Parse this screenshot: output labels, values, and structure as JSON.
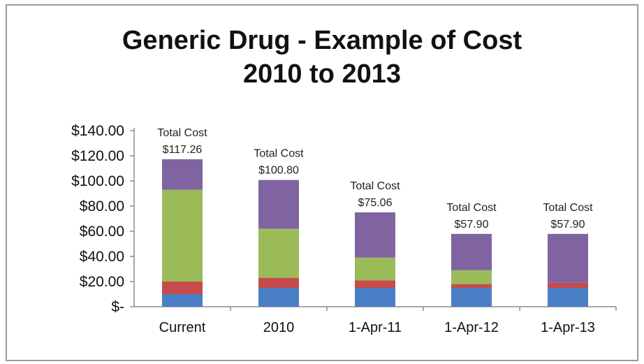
{
  "chart_data": {
    "type": "bar",
    "stacked": true,
    "title": "Generic Drug - Example of Cost",
    "subtitle": "2010 to 2013",
    "xlabel": "",
    "ylabel": "",
    "categories": [
      "Current",
      "2010",
      "1-Apr-11",
      "1-Apr-12",
      "1-Apr-13"
    ],
    "y_ticks": [
      "$-",
      "$20.00",
      "$40.00",
      "$60.00",
      "$80.00",
      "$100.00",
      "$120.00",
      "$140.00"
    ],
    "ylim": [
      0,
      140
    ],
    "grid": false,
    "legend": "none",
    "series": [
      {
        "color": "#4a7fc6",
        "values": [
          10,
          15,
          15,
          15,
          15
        ]
      },
      {
        "color": "#c84b4b",
        "values": [
          10,
          8,
          6,
          3,
          4
        ]
      },
      {
        "color": "#9bbb59",
        "values": [
          73,
          39,
          18,
          11,
          0
        ]
      },
      {
        "color": "#8064a2",
        "values": [
          24.26,
          38.8,
          36.06,
          28.9,
          38.9
        ]
      }
    ],
    "data_labels": [
      {
        "line1": "Total Cost",
        "line2": "$117.26"
      },
      {
        "line1": "Total Cost",
        "line2": "$100.80"
      },
      {
        "line1": "Total Cost",
        "line2": "$75.06"
      },
      {
        "line1": "Total Cost",
        "line2": "$57.90"
      },
      {
        "line1": "Total Cost",
        "line2": "$57.90"
      }
    ]
  }
}
